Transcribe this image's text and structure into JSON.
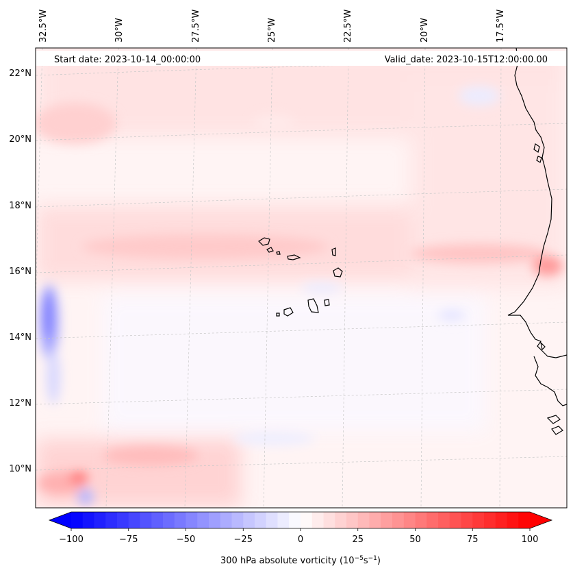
{
  "map": {
    "start_date": "Start date: 2023-10-14_00:00:00",
    "valid_date": "Valid_date: 2023-10-15T12:00:00.00",
    "lon_labels": [
      "32.5°W",
      "30°W",
      "27.5°W",
      "25°W",
      "22.5°W",
      "20°W",
      "17.5°W"
    ],
    "lat_labels": [
      "22°N",
      "20°N",
      "18°N",
      "16°N",
      "14°N",
      "12°N",
      "10°N"
    ],
    "gridlines": "dashed",
    "coastline_color": "#000000"
  },
  "colorbar": {
    "title": "300 hPa absolute vorticity (10",
    "title_exp1": "−5",
    "title_mid": "s",
    "title_exp2": "−1",
    "title_end": ")",
    "ticks": [
      "−100",
      "−75",
      "−50",
      "−25",
      "0",
      "25",
      "50",
      "75",
      "100"
    ],
    "min": -100,
    "max": 100,
    "extend": "both",
    "colormap": "bwr",
    "low_color": "#0000ff",
    "mid_color": "#ffffff",
    "high_color": "#ff0000"
  }
}
